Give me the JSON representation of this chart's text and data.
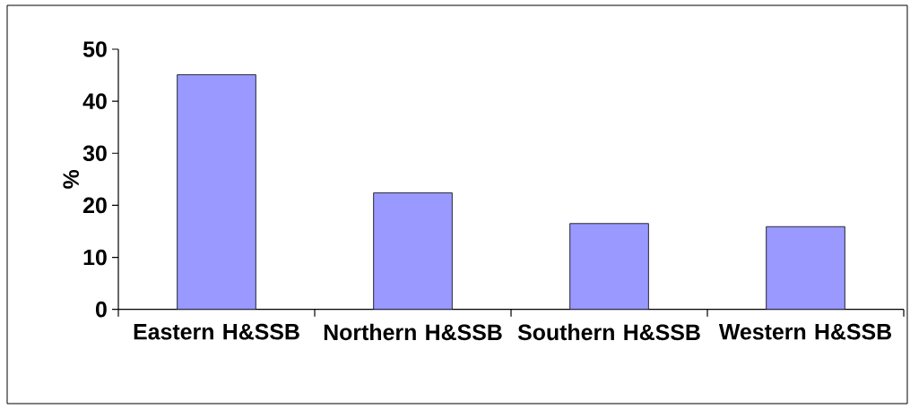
{
  "chart_data": {
    "type": "bar",
    "ylabel": "%",
    "categories": [
      "Eastern H&SSB",
      "Northern H&SSB",
      "Southern H&SSB",
      "Western H&SSB"
    ],
    "values": [
      45.1,
      22.4,
      16.5,
      15.9
    ],
    "color": "#9999ff",
    "ylim": [
      0,
      50
    ],
    "yticks": [
      0,
      10,
      20,
      30,
      40,
      50
    ]
  }
}
